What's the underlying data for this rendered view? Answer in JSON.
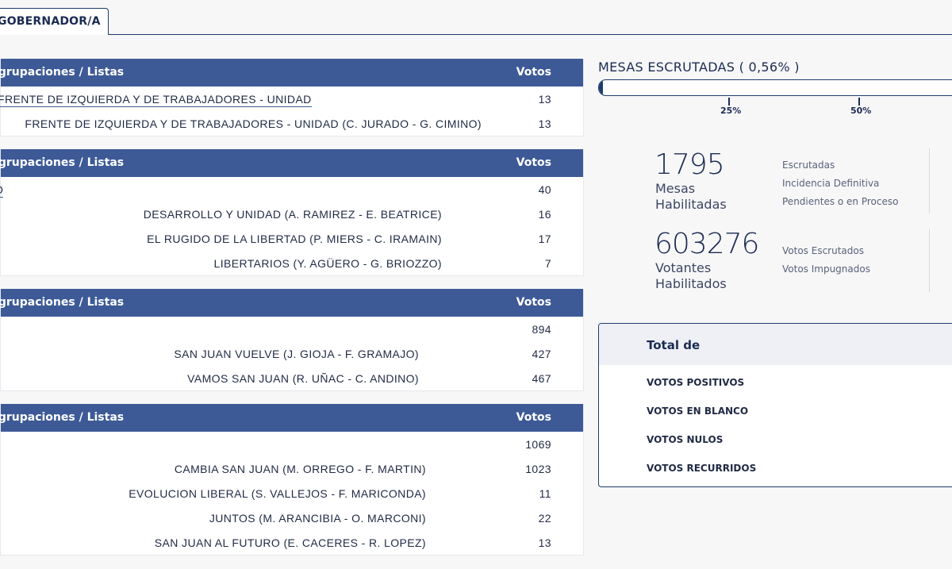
{
  "tab": {
    "label": "GOBERNADOR/A"
  },
  "tables": [
    {
      "header_left": "Agrupaciones / Listas",
      "header_right": "Votos",
      "group": {
        "name": "FRENTE DE IZQUIERDA Y DE TRABAJADORES - UNIDAD",
        "votes": "13"
      },
      "lists": [
        {
          "name": "FRENTE DE IZQUIERDA Y DE TRABAJADORES - UNIDAD (C. JURADO - G. CIMINO)",
          "votes": "13"
        }
      ]
    },
    {
      "header_left": "Agrupaciones / Listas",
      "header_right": "Votos",
      "group": {
        "name": "O",
        "votes": "40"
      },
      "lists": [
        {
          "name": "DESARROLLO Y UNIDAD (A. RAMIREZ - E. BEATRICE)",
          "votes": "16"
        },
        {
          "name": "EL RUGIDO DE LA LIBERTAD (P. MIERS - C. IRAMAIN)",
          "votes": "17"
        },
        {
          "name": "LIBERTARIOS (Y. AGÜERO - G. BRIOZZO)",
          "votes": "7"
        }
      ]
    },
    {
      "header_left": "Agrupaciones / Listas",
      "header_right": "Votos",
      "group": {
        "name": "",
        "votes": "894"
      },
      "lists": [
        {
          "name": "SAN JUAN VUELVE (J. GIOJA - F. GRAMAJO)",
          "votes": "427"
        },
        {
          "name": "VAMOS SAN JUAN (R. UÑAC - C. ANDINO)",
          "votes": "467"
        }
      ]
    },
    {
      "header_left": "Agrupaciones / Listas",
      "header_right": "Votos",
      "group": {
        "name": "",
        "votes": "1069"
      },
      "lists": [
        {
          "name": "CAMBIA SAN JUAN (M. ORREGO - F. MARTIN)",
          "votes": "1023"
        },
        {
          "name": "EVOLUCION LIBERAL (S. VALLEJOS - F. MARICONDA)",
          "votes": "11"
        },
        {
          "name": "JUNTOS (M. ARANCIBIA - O. MARCONI)",
          "votes": "22"
        },
        {
          "name": "SAN JUAN AL FUTURO (E. CACERES - R. LOPEZ)",
          "votes": "13"
        }
      ]
    }
  ],
  "mesas": {
    "title": "MESAS ESCRUTADAS ( 0,56% )",
    "progress_percent": 0.56,
    "ticks": [
      "25%",
      "50%"
    ]
  },
  "stats": {
    "mesas_value": "1795",
    "mesas_label_1": "Mesas",
    "mesas_label_2": "Habilitadas",
    "mesas_side": [
      "Escrutadas",
      "Incidencia Definitiva",
      "Pendientes o en Proceso"
    ],
    "votantes_value": "603276",
    "votantes_label_1": "Votantes",
    "votantes_label_2": "Habilitados",
    "votantes_side": [
      "Votos Escrutados",
      "Votos Impugnados"
    ]
  },
  "totals": {
    "title": "Total de",
    "rows": [
      "VOTOS POSITIVOS",
      "VOTOS EN BLANCO",
      "VOTOS NULOS",
      "VOTOS RECURRIDOS"
    ]
  }
}
